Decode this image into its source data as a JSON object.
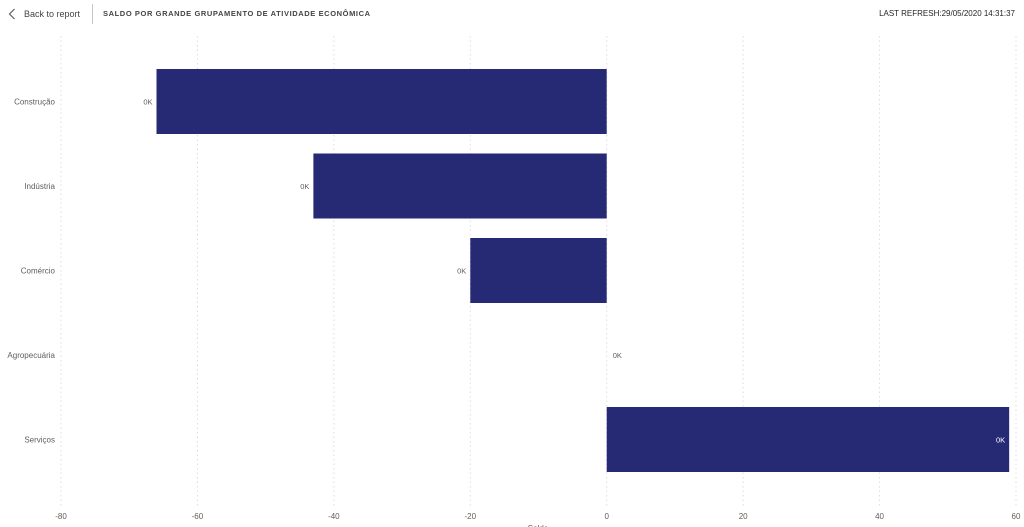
{
  "header": {
    "back_label": "Back to report",
    "title": "SALDO POR GRANDE GRUPAMENTO DE ATIVIDADE ECONÔMICA",
    "last_refresh": "LAST REFRESH:29/05/2020 14:31:37"
  },
  "icons": {
    "back": "chevron-left-icon"
  },
  "colors": {
    "bar": "#262a75",
    "grid": "#dcdcdc",
    "label_dark": "#605e5c",
    "label_light": "#ffffff"
  },
  "chart_data": {
    "type": "bar",
    "orientation": "horizontal",
    "title": "SALDO POR GRANDE GRUPAMENTO DE ATIVIDADE ECONÔMICA",
    "xlabel": "Saldo",
    "ylabel": "",
    "categories": [
      "Construção",
      "Indústria",
      "Comércio",
      "Agropecuária",
      "Serviços"
    ],
    "values": [
      -66,
      -43,
      -20,
      0,
      59
    ],
    "data_labels": [
      "0K",
      "0K",
      "0K",
      "0K",
      "0K"
    ],
    "xlim": [
      -80,
      60
    ],
    "xticks": [
      -80,
      -60,
      -40,
      -20,
      0,
      20,
      40,
      60
    ],
    "grid": true
  }
}
